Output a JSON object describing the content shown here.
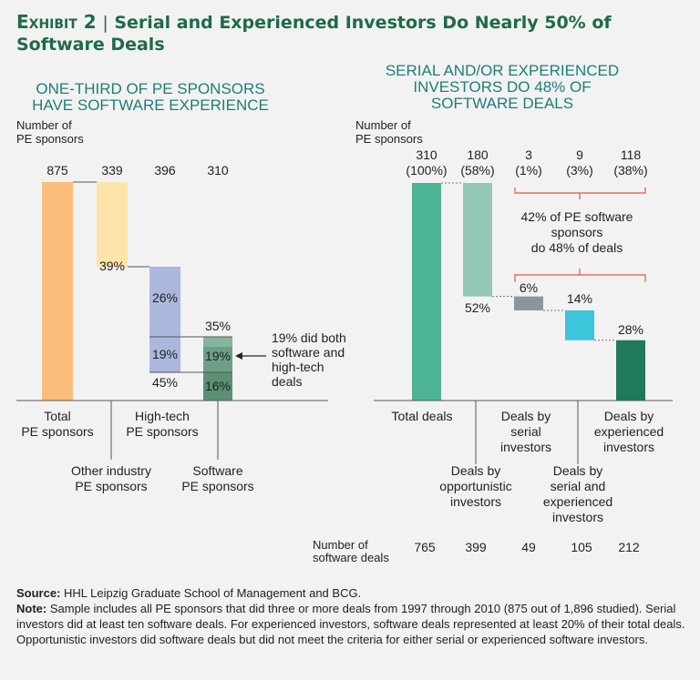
{
  "exhibit": {
    "label": "Exhibit 2",
    "separator": "|",
    "title": "Serial and Experienced Investors Do Nearly 50% of Software Deals"
  },
  "colors": {
    "title_green": "#1d6b46",
    "left_title": "#1f7d7a",
    "total": "#fbbd7b",
    "other": "#fde4a8",
    "hightech": "#a9b8dc",
    "software_top": "#86b59d",
    "software_mid": "#6d9f86",
    "software_bot": "#5a9075",
    "total_deals": "#4db395",
    "opportunistic": "#93c8b4",
    "serial": "#8a969d",
    "serial_exp": "#3cc5db",
    "experienced": "#207a59",
    "bracket": "#e05a3a"
  },
  "chart_data": [
    {
      "type": "bar",
      "subtype": "waterfall",
      "title": "ONE-THIRD OF PE SPONSORS HAVE SOFTWARE EXPERIENCE",
      "title_lines": [
        "ONE-THIRD OF PE SPONSORS",
        "HAVE SOFTWARE EXPERIENCE"
      ],
      "ylabel_lines": [
        "Number of",
        "PE sponsors"
      ],
      "categories": [
        "Total PE sponsors",
        "Other industry PE sponsors",
        "High-tech PE sponsors",
        "Software PE sponsors"
      ],
      "category_lines": [
        [
          "Total",
          "PE sponsors"
        ],
        [
          "Other industry",
          "PE sponsors"
        ],
        [
          "High-tech",
          "PE sponsors"
        ],
        [
          "Software",
          "PE sponsors"
        ]
      ],
      "values": [
        875,
        339,
        396,
        310
      ],
      "value_labels": [
        "875",
        "339",
        "396",
        "310"
      ],
      "segments": {
        "other": {
          "pct": "39%"
        },
        "hightech": [
          "26%",
          "19%",
          "45%"
        ],
        "software": [
          "35%",
          "19%",
          "16%"
        ]
      },
      "annotation_lines": [
        "19% did both",
        "software and",
        "high-tech",
        "deals"
      ]
    },
    {
      "type": "bar",
      "subtype": "waterfall",
      "title": "SERIAL AND/OR EXPERIENCED INVESTORS DO 48% OF SOFTWARE DEALS",
      "title_lines": [
        "SERIAL AND/OR EXPERIENCED",
        "INVESTORS DO 48% OF",
        "SOFTWARE DEALS"
      ],
      "ylabel_lines": [
        "Number of",
        "PE sponsors"
      ],
      "categories": [
        "Total deals",
        "Deals by opportunistic investors",
        "Deals by serial investors",
        "Deals by serial and experienced investors",
        "Deals by experienced investors"
      ],
      "category_lines": [
        [
          "Total deals"
        ],
        [
          "Deals by",
          "opportunistic",
          "investors"
        ],
        [
          "Deals by",
          "serial",
          "investors"
        ],
        [
          "Deals by",
          "serial and",
          "experienced",
          "investors"
        ],
        [
          "Deals by",
          "experienced",
          "investors"
        ]
      ],
      "sponsors": [
        310,
        180,
        3,
        9,
        118
      ],
      "sponsor_pct": [
        "(100%)",
        "(58%)",
        "(1%)",
        "(3%)",
        "(38%)"
      ],
      "deal_share_labels": [
        "52%",
        "6%",
        "14%",
        "28%"
      ],
      "bracket_text_lines": [
        "42% of PE software",
        "sponsors",
        "do 48% of deals"
      ],
      "software_deals_label_lines": [
        "Number of",
        "software deals"
      ],
      "software_deals": [
        765,
        399,
        49,
        105,
        212
      ]
    }
  ],
  "source_label": "Source:",
  "source_text": "HHL Leipzig Graduate School of Management and BCG.",
  "note_label": "Note:",
  "note_text": "Sample includes all PE sponsors that did three or more deals from 1997 through 2010 (875 out of 1,896 studied). Serial investors did at least ten software deals. For experienced investors, software deals represented at least 20% of their total deals. Opportunistic investors did software deals but did not meet the criteria for either serial or experienced software investors."
}
